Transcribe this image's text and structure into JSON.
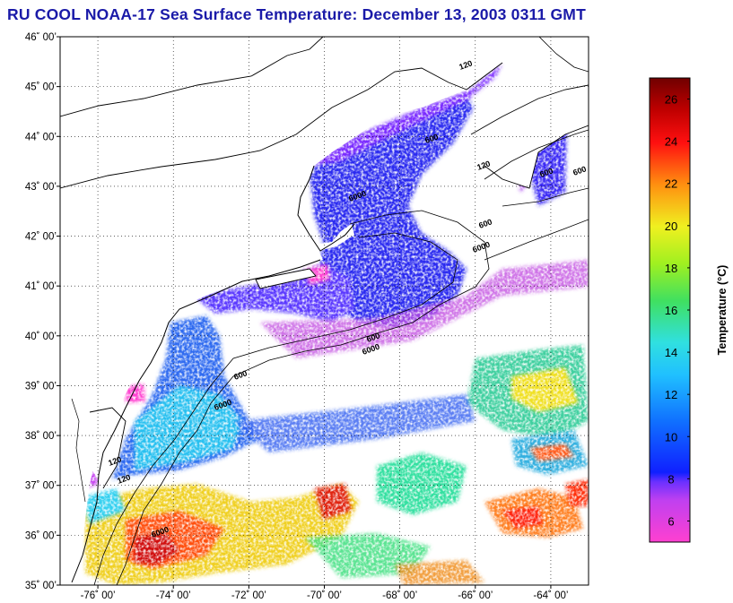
{
  "title": "RU COOL  NOAA-17  Sea Surface Temperature:  December 13, 2003 0311 GMT",
  "map": {
    "lat_range": [
      35,
      46
    ],
    "lon_range": [
      -77,
      -63
    ],
    "lat_ticks": [
      {
        "value": 46,
        "label": "46˚ 00’"
      },
      {
        "value": 45,
        "label": "45˚ 00’"
      },
      {
        "value": 44,
        "label": "44˚ 00’"
      },
      {
        "value": 43,
        "label": "43˚ 00’"
      },
      {
        "value": 42,
        "label": "42˚ 00’"
      },
      {
        "value": 41,
        "label": "41˚ 00’"
      },
      {
        "value": 40,
        "label": "40˚ 00’"
      },
      {
        "value": 39,
        "label": "39˚ 00’"
      },
      {
        "value": 38,
        "label": "38˚ 00’"
      },
      {
        "value": 37,
        "label": "37˚ 00’"
      },
      {
        "value": 36,
        "label": "36˚ 00’"
      },
      {
        "value": 35,
        "label": "35˚ 00’"
      }
    ],
    "lon_ticks": [
      {
        "value": -76,
        "label": "-76˚ 00’"
      },
      {
        "value": -74,
        "label": "-74˚ 00’"
      },
      {
        "value": -72,
        "label": "-72˚ 00’"
      },
      {
        "value": -70,
        "label": "-70˚ 00’"
      },
      {
        "value": -68,
        "label": "-68˚ 00’"
      },
      {
        "value": -66,
        "label": "-66˚ 00’"
      },
      {
        "value": -64,
        "label": "-64˚ 00’"
      }
    ],
    "contour_labels": [
      "120",
      "120",
      "600",
      "600",
      "600",
      "6000",
      "600",
      "6000",
      "600",
      "6000",
      "600",
      "6000",
      "120",
      "6000",
      "120"
    ],
    "grid": "dotted"
  },
  "colorbar": {
    "title": "Temperature (°C)",
    "range": [
      5,
      27
    ],
    "ticks": [
      {
        "value": 26,
        "label": "26"
      },
      {
        "value": 24,
        "label": "24"
      },
      {
        "value": 22,
        "label": "22"
      },
      {
        "value": 20,
        "label": "20"
      },
      {
        "value": 18,
        "label": "18"
      },
      {
        "value": 16,
        "label": "16"
      },
      {
        "value": 14,
        "label": "14"
      },
      {
        "value": 12,
        "label": "12"
      },
      {
        "value": 10,
        "label": "10"
      },
      {
        "value": 8,
        "label": "8"
      },
      {
        "value": 6,
        "label": "6"
      }
    ],
    "colors": {
      "magenta": "#ff40d0",
      "violet": "#8030ff",
      "blue": "#1020ff",
      "cyan": "#20e0ff",
      "green": "#40e060",
      "yellow": "#f0f020",
      "orange": "#ff9010",
      "red": "#ff1010",
      "darkred": "#700000"
    }
  },
  "colors": {
    "title": "#1a1aa8",
    "coast": "#000000",
    "no_data": "#ffffff"
  }
}
